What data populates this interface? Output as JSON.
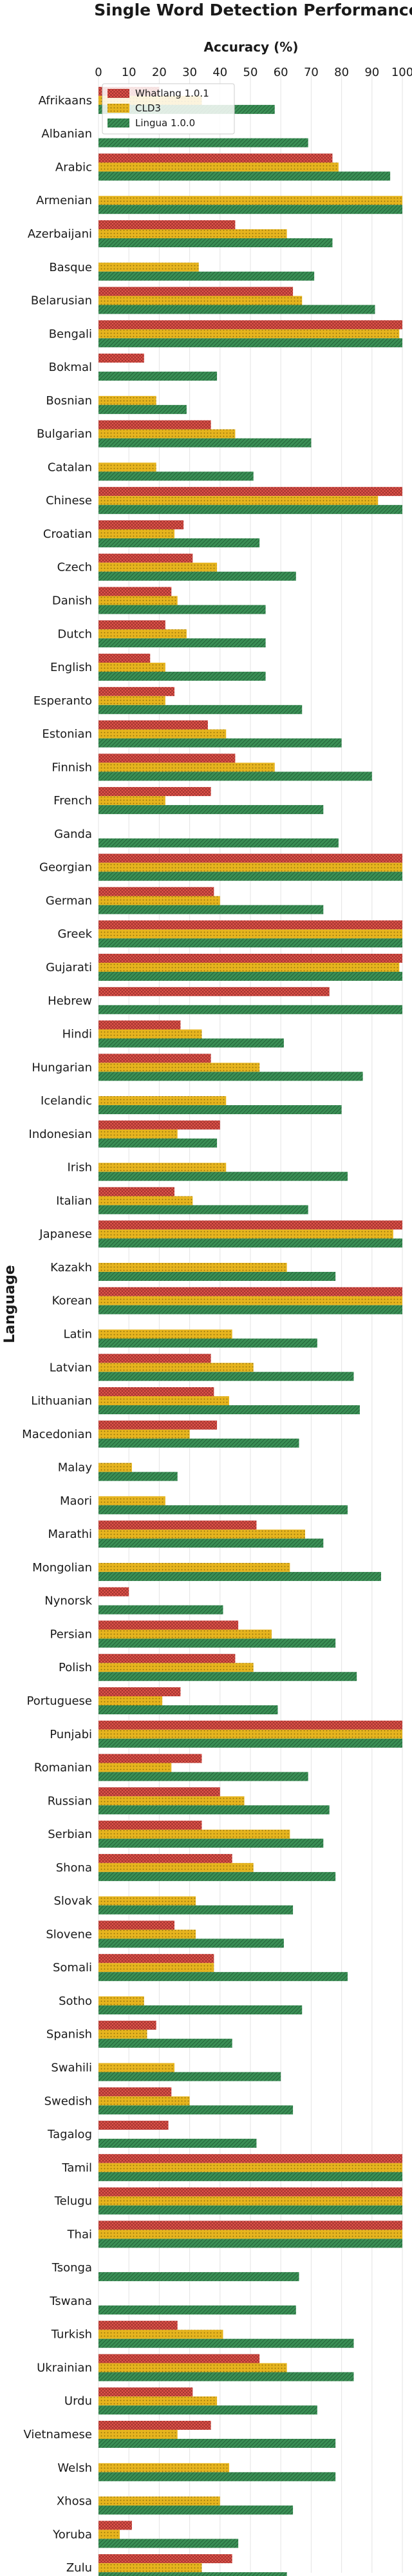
{
  "chart_data": {
    "type": "bar",
    "orientation": "horizontal",
    "title": "Single Word Detection Performance",
    "xlabel": "Accuracy (%)",
    "ylabel": "Language",
    "xlim": [
      0,
      100
    ],
    "x_ticks": [
      "0",
      "10",
      "20",
      "30",
      "40",
      "50",
      "60",
      "70",
      "80",
      "90",
      "100"
    ],
    "x_axis_position": "top",
    "grid": true,
    "legend_position": "top-left",
    "categories": [
      "Afrikaans",
      "Albanian",
      "Arabic",
      "Armenian",
      "Azerbaijani",
      "Basque",
      "Belarusian",
      "Bengali",
      "Bokmal",
      "Bosnian",
      "Bulgarian",
      "Catalan",
      "Chinese",
      "Croatian",
      "Czech",
      "Danish",
      "Dutch",
      "English",
      "Esperanto",
      "Estonian",
      "Finnish",
      "French",
      "Ganda",
      "Georgian",
      "German",
      "Greek",
      "Gujarati",
      "Hebrew",
      "Hindi",
      "Hungarian",
      "Icelandic",
      "Indonesian",
      "Irish",
      "Italian",
      "Japanese",
      "Kazakh",
      "Korean",
      "Latin",
      "Latvian",
      "Lithuanian",
      "Macedonian",
      "Malay",
      "Maori",
      "Marathi",
      "Mongolian",
      "Nynorsk",
      "Persian",
      "Polish",
      "Portuguese",
      "Punjabi",
      "Romanian",
      "Russian",
      "Serbian",
      "Shona",
      "Slovak",
      "Slovene",
      "Somali",
      "Sotho",
      "Spanish",
      "Swahili",
      "Swedish",
      "Tagalog",
      "Tamil",
      "Telugu",
      "Thai",
      "Tsonga",
      "Tswana",
      "Turkish",
      "Ukrainian",
      "Urdu",
      "Vietnamese",
      "Welsh",
      "Xhosa",
      "Yoruba",
      "Zulu"
    ],
    "series": [
      {
        "name": "Whatlang 1.0.1",
        "color": "#e0524a",
        "pattern": "crosshatch",
        "values": [
          20,
          0,
          77,
          0,
          45,
          0,
          64,
          100,
          15,
          0,
          37,
          0,
          100,
          28,
          31,
          24,
          22,
          17,
          25,
          36,
          45,
          37,
          0,
          100,
          38,
          100,
          100,
          76,
          27,
          37,
          0,
          40,
          0,
          25,
          100,
          0,
          100,
          0,
          37,
          38,
          39,
          0,
          0,
          52,
          0,
          10,
          46,
          45,
          27,
          100,
          34,
          40,
          34,
          44,
          0,
          25,
          38,
          0,
          19,
          0,
          24,
          23,
          100,
          100,
          100,
          0,
          0,
          26,
          53,
          31,
          37,
          0,
          0,
          11,
          44
        ]
      },
      {
        "name": "CLD3",
        "color": "#e6b41e",
        "pattern": "dots",
        "values": [
          34,
          0,
          79,
          100,
          62,
          33,
          67,
          99,
          0,
          19,
          45,
          19,
          92,
          25,
          39,
          26,
          29,
          22,
          22,
          42,
          58,
          22,
          0,
          100,
          40,
          100,
          99,
          0,
          34,
          53,
          42,
          26,
          42,
          31,
          97,
          62,
          100,
          44,
          51,
          43,
          30,
          11,
          22,
          68,
          63,
          0,
          57,
          51,
          21,
          100,
          24,
          48,
          63,
          51,
          32,
          32,
          38,
          15,
          16,
          25,
          30,
          0,
          100,
          100,
          100,
          0,
          0,
          41,
          62,
          39,
          26,
          43,
          40,
          7,
          34
        ]
      },
      {
        "name": "Lingua 1.0.0",
        "color": "#3a8f55",
        "pattern": "diagonal",
        "values": [
          58,
          69,
          96,
          100,
          77,
          71,
          91,
          100,
          39,
          29,
          70,
          51,
          100,
          53,
          65,
          55,
          55,
          55,
          67,
          80,
          90,
          74,
          79,
          100,
          74,
          100,
          100,
          100,
          61,
          87,
          80,
          39,
          82,
          69,
          100,
          78,
          100,
          72,
          84,
          86,
          66,
          26,
          82,
          74,
          93,
          41,
          78,
          85,
          59,
          100,
          69,
          76,
          74,
          78,
          64,
          61,
          82,
          67,
          44,
          60,
          64,
          52,
          100,
          100,
          100,
          66,
          65,
          84,
          84,
          72,
          78,
          78,
          64,
          46,
          62
        ]
      }
    ]
  }
}
